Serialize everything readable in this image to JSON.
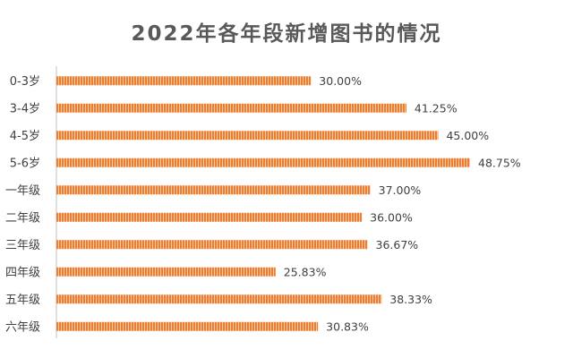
{
  "chart_data": {
    "type": "bar",
    "orientation": "horizontal",
    "title": "2022年各年段新增图书的情况",
    "categories": [
      "0-3岁",
      "3-4岁",
      "4-5岁",
      "5-6岁",
      "一年级",
      "二年级",
      "三年级",
      "四年级",
      "五年级",
      "六年级"
    ],
    "values": [
      30.0,
      41.25,
      45.0,
      48.75,
      37.0,
      36.0,
      36.67,
      25.83,
      38.33,
      30.83
    ],
    "data_labels": [
      "30.00%",
      "41.25%",
      "45.00%",
      "48.75%",
      "37.00%",
      "36.00%",
      "36.67%",
      "25.83%",
      "38.33%",
      "30.83%"
    ],
    "value_unit": "%",
    "xlim": [
      0,
      50
    ],
    "grid": false,
    "legend": "none",
    "bar_color": "#ED7D31"
  }
}
